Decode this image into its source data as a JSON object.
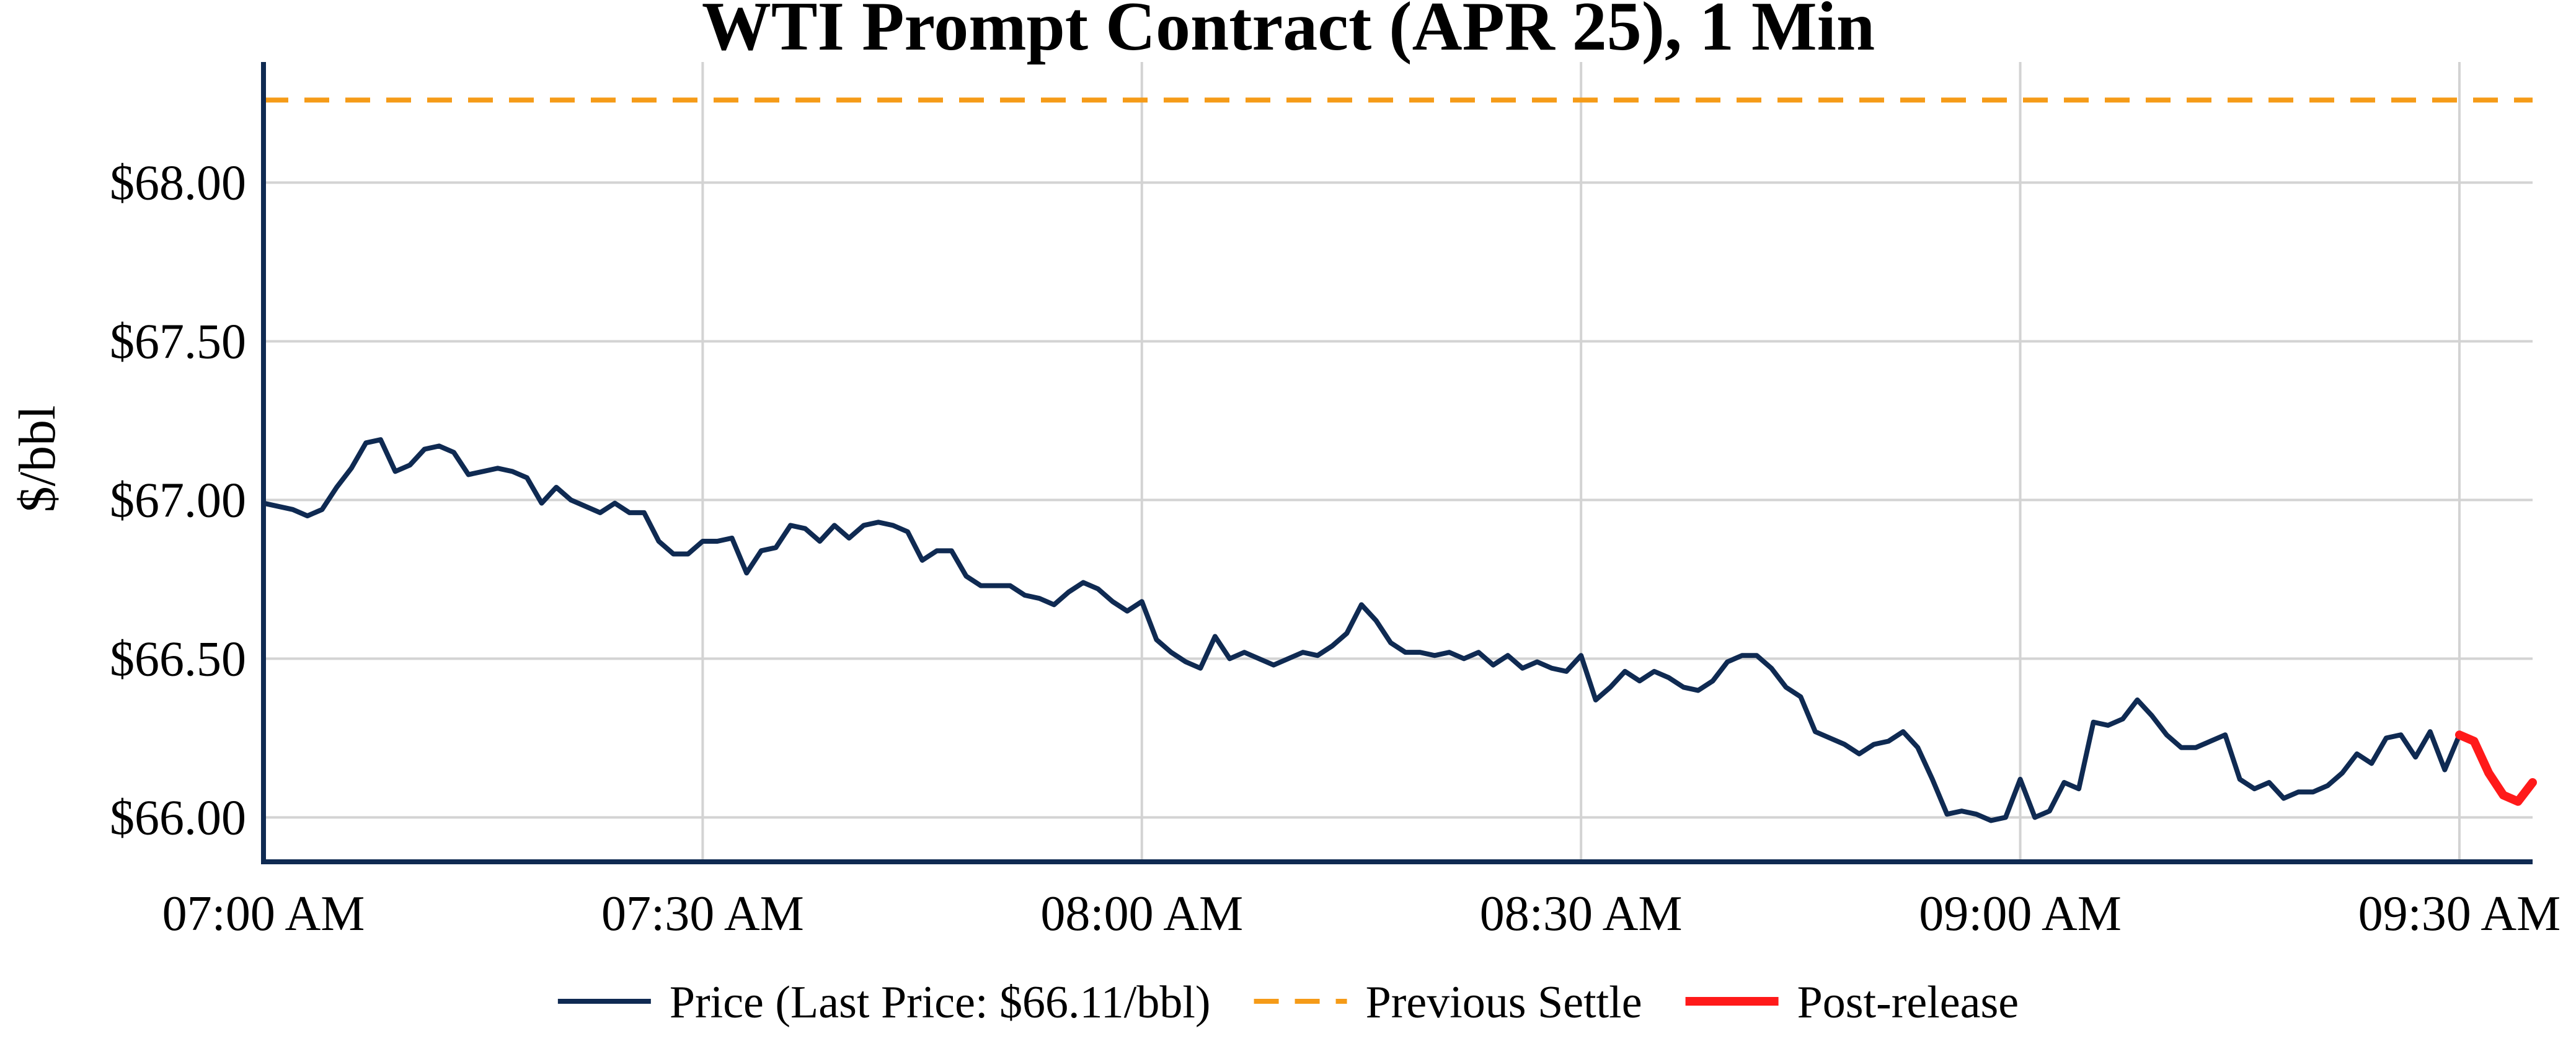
{
  "chart_data": {
    "type": "line",
    "title": "WTI Prompt Contract (APR 25), 1 Min",
    "xlabel": "",
    "ylabel": "$/bbl",
    "x_ticks": [
      "07:00 AM",
      "07:30 AM",
      "08:00 AM",
      "08:30 AM",
      "09:00 AM",
      "09:30 AM"
    ],
    "x_tick_minutes": [
      0,
      30,
      60,
      90,
      120,
      150
    ],
    "xlim_minutes": [
      0,
      155
    ],
    "y_ticks": [
      66.0,
      66.5,
      67.0,
      67.5,
      68.0
    ],
    "y_tick_labels": [
      "$66.00",
      "$66.50",
      "$67.00",
      "$67.50",
      "$68.00"
    ],
    "ylim": [
      65.86,
      68.38
    ],
    "grid": true,
    "legend_position": "bottom-center",
    "previous_settle": 68.26,
    "series": [
      {
        "name": "Price (Last Price: $66.11/bbl)",
        "color": "#0f2a52",
        "style": "solid",
        "x": [
          0,
          1,
          2,
          3,
          4,
          5,
          6,
          7,
          8,
          9,
          10,
          11,
          12,
          13,
          14,
          15,
          16,
          17,
          18,
          19,
          20,
          21,
          22,
          23,
          24,
          25,
          26,
          27,
          28,
          29,
          30,
          31,
          32,
          33,
          34,
          35,
          36,
          37,
          38,
          39,
          40,
          41,
          42,
          43,
          44,
          45,
          46,
          47,
          48,
          49,
          50,
          51,
          52,
          53,
          54,
          55,
          56,
          57,
          58,
          59,
          60,
          61,
          62,
          63,
          64,
          65,
          66,
          67,
          68,
          69,
          70,
          71,
          72,
          73,
          74,
          75,
          76,
          77,
          78,
          79,
          80,
          81,
          82,
          83,
          84,
          85,
          86,
          87,
          88,
          89,
          90,
          91,
          92,
          93,
          94,
          95,
          96,
          97,
          98,
          99,
          100,
          101,
          102,
          103,
          104,
          105,
          106,
          107,
          108,
          109,
          110,
          111,
          112,
          113,
          114,
          115,
          116,
          117,
          118,
          119,
          120,
          121,
          122,
          123,
          124,
          125,
          126,
          127,
          128,
          129,
          130,
          131,
          132,
          133,
          134,
          135,
          136,
          137,
          138,
          139,
          140,
          141,
          142,
          143,
          144,
          145,
          146,
          147,
          148,
          149,
          150
        ],
        "values": [
          66.99,
          66.98,
          66.97,
          66.95,
          66.97,
          67.04,
          67.1,
          67.18,
          67.19,
          67.09,
          67.11,
          67.16,
          67.17,
          67.15,
          67.08,
          67.09,
          67.1,
          67.09,
          67.07,
          66.99,
          67.04,
          67.0,
          66.98,
          66.96,
          66.99,
          66.96,
          66.96,
          66.87,
          66.83,
          66.83,
          66.87,
          66.87,
          66.88,
          66.77,
          66.84,
          66.85,
          66.92,
          66.91,
          66.87,
          66.92,
          66.88,
          66.92,
          66.93,
          66.92,
          66.9,
          66.81,
          66.84,
          66.84,
          66.76,
          66.73,
          66.73,
          66.73,
          66.7,
          66.69,
          66.67,
          66.71,
          66.74,
          66.72,
          66.68,
          66.65,
          66.68,
          66.56,
          66.52,
          66.49,
          66.47,
          66.57,
          66.5,
          66.52,
          66.5,
          66.48,
          66.5,
          66.52,
          66.51,
          66.54,
          66.58,
          66.67,
          66.62,
          66.55,
          66.52,
          66.52,
          66.51,
          66.52,
          66.5,
          66.52,
          66.48,
          66.51,
          66.47,
          66.49,
          66.47,
          66.46,
          66.51,
          66.37,
          66.41,
          66.46,
          66.43,
          66.46,
          66.44,
          66.41,
          66.4,
          66.43,
          66.49,
          66.51,
          66.51,
          66.47,
          66.41,
          66.38,
          66.27,
          66.25,
          66.23,
          66.2,
          66.23,
          66.24,
          66.27,
          66.22,
          66.12,
          66.01,
          66.02,
          66.01,
          65.99,
          66.0,
          66.12,
          66.0,
          66.02,
          66.11,
          66.09,
          66.3,
          66.29,
          66.31,
          66.37,
          66.32,
          66.26,
          66.22,
          66.22,
          66.24,
          66.26,
          66.12,
          66.09,
          66.11,
          66.06,
          66.08,
          66.08,
          66.1,
          66.14,
          66.2,
          66.17,
          66.25,
          66.26,
          66.19,
          66.27,
          66.15,
          66.26
        ]
      },
      {
        "name": "Previous Settle",
        "color": "#f59b18",
        "style": "dashed",
        "x": [
          0,
          155
        ],
        "values": [
          68.26,
          68.26
        ]
      },
      {
        "name": "Post-release",
        "color": "#ff1a1a",
        "style": "solid",
        "x": [
          150,
          151,
          152,
          153,
          154,
          155
        ],
        "values": [
          66.26,
          66.24,
          66.14,
          66.07,
          66.05,
          66.11
        ]
      }
    ]
  }
}
